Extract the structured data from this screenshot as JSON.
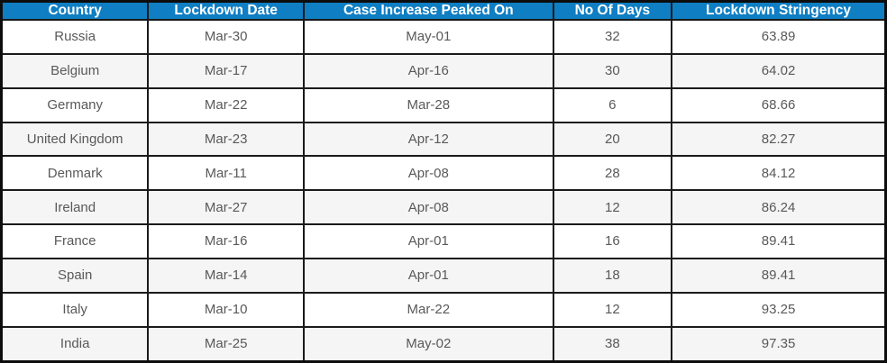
{
  "table": {
    "columns": [
      "Country",
      "Lockdown Date",
      "Case Increase Peaked On",
      "No Of Days",
      "Lockdown Stringency"
    ],
    "rows": [
      [
        "Russia",
        "Mar-30",
        "May-01",
        "32",
        "63.89"
      ],
      [
        "Belgium",
        "Mar-17",
        "Apr-16",
        "30",
        "64.02"
      ],
      [
        "Germany",
        "Mar-22",
        "Mar-28",
        "6",
        "68.66"
      ],
      [
        "United Kingdom",
        "Mar-23",
        "Apr-12",
        "20",
        "82.27"
      ],
      [
        "Denmark",
        "Mar-11",
        "Apr-08",
        "28",
        "84.12"
      ],
      [
        "Ireland",
        "Mar-27",
        "Apr-08",
        "12",
        "86.24"
      ],
      [
        "France",
        "Mar-16",
        "Apr-01",
        "16",
        "89.41"
      ],
      [
        "Spain",
        "Mar-14",
        "Apr-01",
        "18",
        "89.41"
      ],
      [
        "Italy",
        "Mar-10",
        "Mar-22",
        "12",
        "93.25"
      ],
      [
        "India",
        "Mar-25",
        "May-02",
        "38",
        "97.35"
      ]
    ]
  },
  "chart_data": {
    "type": "table",
    "columns": [
      "Country",
      "Lockdown Date",
      "Case Increase Peaked On",
      "No Of Days",
      "Lockdown Stringency"
    ],
    "rows": [
      {
        "country": "Russia",
        "lockdown_date": "Mar-30",
        "case_increase_peaked_on": "May-01",
        "no_of_days": 32,
        "lockdown_stringency": 63.89
      },
      {
        "country": "Belgium",
        "lockdown_date": "Mar-17",
        "case_increase_peaked_on": "Apr-16",
        "no_of_days": 30,
        "lockdown_stringency": 64.02
      },
      {
        "country": "Germany",
        "lockdown_date": "Mar-22",
        "case_increase_peaked_on": "Mar-28",
        "no_of_days": 6,
        "lockdown_stringency": 68.66
      },
      {
        "country": "United Kingdom",
        "lockdown_date": "Mar-23",
        "case_increase_peaked_on": "Apr-12",
        "no_of_days": 20,
        "lockdown_stringency": 82.27
      },
      {
        "country": "Denmark",
        "lockdown_date": "Mar-11",
        "case_increase_peaked_on": "Apr-08",
        "no_of_days": 28,
        "lockdown_stringency": 84.12
      },
      {
        "country": "Ireland",
        "lockdown_date": "Mar-27",
        "case_increase_peaked_on": "Apr-08",
        "no_of_days": 12,
        "lockdown_stringency": 86.24
      },
      {
        "country": "France",
        "lockdown_date": "Mar-16",
        "case_increase_peaked_on": "Apr-01",
        "no_of_days": 16,
        "lockdown_stringency": 89.41
      },
      {
        "country": "Spain",
        "lockdown_date": "Mar-14",
        "case_increase_peaked_on": "Apr-01",
        "no_of_days": 18,
        "lockdown_stringency": 89.41
      },
      {
        "country": "Italy",
        "lockdown_date": "Mar-10",
        "case_increase_peaked_on": "Mar-22",
        "no_of_days": 12,
        "lockdown_stringency": 93.25
      },
      {
        "country": "India",
        "lockdown_date": "Mar-25",
        "case_increase_peaked_on": "May-02",
        "no_of_days": 38,
        "lockdown_stringency": 97.35
      }
    ],
    "title": "",
    "layout_hints": {
      "header_position": "top",
      "grid": true,
      "zebra_striping": true
    }
  },
  "colors": {
    "header_bg": "#0f7ec3",
    "header_text": "#ffffff",
    "row_bg": "#ffffff",
    "row_alt_bg": "#f5f5f5",
    "body_text": "#595959",
    "border": "#1a1a1a"
  }
}
